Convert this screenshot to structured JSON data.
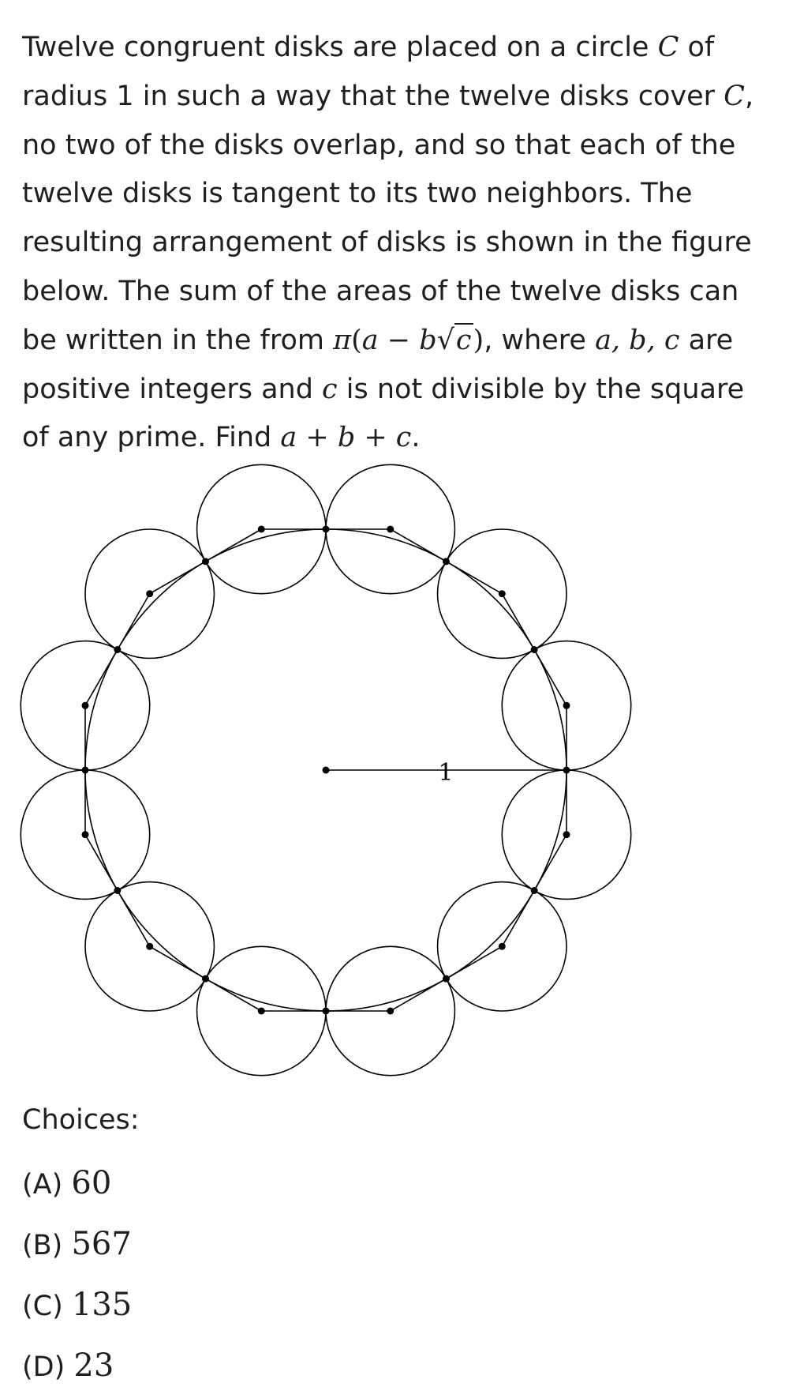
{
  "problem": {
    "t1": "Twelve congruent disks are placed on a circle ",
    "C": "C",
    "t2": " of radius 1 in such a way that the twelve disks cover ",
    "t3": ", no two of the disks overlap, and so that each of the twelve disks is tangent to its two neighbors. The resulting arrangement of disks is shown in the figure below. The sum of the areas of the twelve disks can be written in the from ",
    "expr_pi": "π",
    "expr_open": "(",
    "expr_a": "a",
    "expr_minus": " − ",
    "expr_b": "b",
    "expr_rad": "√",
    "expr_c": "c",
    "expr_close": ")",
    "t4": ", where ",
    "vars": "a, b, c",
    "t5": " are positive integers and ",
    "c": "c",
    "t6": " is not divisible by the square of any prime. Find ",
    "sum": "a + b + c",
    "t7": "."
  },
  "figure": {
    "radius_label": "1",
    "disk_count": 12
  },
  "choices_label": "Choices:",
  "choices": [
    {
      "letter": "(A) ",
      "value": "60"
    },
    {
      "letter": "(B) ",
      "value": "567"
    },
    {
      "letter": "(C) ",
      "value": "135"
    },
    {
      "letter": "(D) ",
      "value": "23"
    }
  ]
}
